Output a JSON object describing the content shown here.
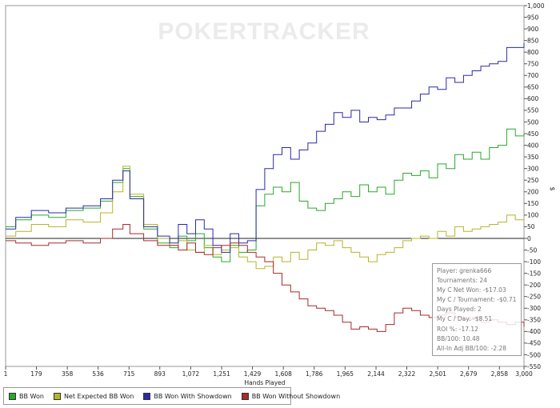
{
  "chart_data": {
    "type": "line",
    "watermark": "POKERTRACKER",
    "xlabel": "Hands Played",
    "ylabel": "$",
    "xlim": [
      1,
      3000
    ],
    "ylim": [
      -550,
      1000
    ],
    "x_ticks": [
      1,
      179,
      358,
      536,
      715,
      893,
      1072,
      1251,
      1429,
      1608,
      1786,
      1965,
      2144,
      2322,
      2501,
      2679,
      2858,
      3000
    ],
    "x_tick_labels": [
      "1",
      "179",
      "358",
      "536",
      "715",
      "893",
      "1,072",
      "1,251",
      "1,429",
      "1,608",
      "1,786",
      "1,965",
      "2,144",
      "2,322",
      "2,501",
      "2,679",
      "2,858",
      "3,000"
    ],
    "y_ticks": [
      -550,
      -500,
      -450,
      -400,
      -350,
      -300,
      -250,
      -200,
      -150,
      -100,
      -50,
      0,
      50,
      100,
      150,
      200,
      250,
      300,
      350,
      400,
      450,
      500,
      550,
      600,
      650,
      700,
      750,
      800,
      850,
      900,
      950,
      1000
    ],
    "y_tick_labels": [
      "-550",
      "-500",
      "-450",
      "-400",
      "-350",
      "-300",
      "-250",
      "-200",
      "-150",
      "-100",
      "-50",
      "0",
      "50",
      "100",
      "150",
      "200",
      "250",
      "300",
      "350",
      "400",
      "450",
      "500",
      "550",
      "600",
      "650",
      "700",
      "750",
      "800",
      "850",
      "900",
      "950",
      "1,000"
    ],
    "series": [
      {
        "name": "BB Won",
        "color": "#2aa72a",
        "x": [
          1,
          60,
          150,
          250,
          350,
          450,
          550,
          620,
          680,
          720,
          800,
          880,
          950,
          1000,
          1050,
          1100,
          1150,
          1200,
          1250,
          1300,
          1350,
          1400,
          1450,
          1500,
          1550,
          1600,
          1650,
          1700,
          1750,
          1800,
          1850,
          1900,
          1950,
          2000,
          2050,
          2100,
          2150,
          2200,
          2250,
          2300,
          2350,
          2400,
          2450,
          2500,
          2550,
          2600,
          2650,
          2700,
          2750,
          2800,
          2850,
          2900,
          2950,
          3000
        ],
        "y": [
          50,
          80,
          100,
          90,
          120,
          130,
          160,
          240,
          300,
          180,
          40,
          -20,
          -40,
          10,
          -10,
          20,
          -40,
          -80,
          -100,
          -30,
          -60,
          -50,
          140,
          190,
          220,
          200,
          240,
          160,
          130,
          120,
          150,
          170,
          200,
          180,
          230,
          200,
          220,
          190,
          250,
          280,
          270,
          290,
          260,
          320,
          300,
          360,
          340,
          370,
          340,
          390,
          400,
          470,
          440,
          450
        ]
      },
      {
        "name": "Net Expected BB Won",
        "color": "#b5b52a",
        "x": [
          1,
          60,
          150,
          250,
          350,
          450,
          550,
          620,
          680,
          720,
          800,
          880,
          950,
          1000,
          1050,
          1100,
          1150,
          1200,
          1250,
          1300,
          1350,
          1400,
          1450,
          1500,
          1550,
          1600,
          1650,
          1700,
          1750,
          1800,
          1850,
          1900,
          1950,
          2000,
          2050,
          2100,
          2150,
          2200,
          2250,
          2300,
          2350,
          2400,
          2450,
          2500,
          2550,
          2600,
          2650,
          2700,
          2750,
          2800,
          2850,
          2900,
          2950,
          3000
        ],
        "y": [
          10,
          30,
          60,
          50,
          80,
          70,
          110,
          200,
          310,
          190,
          60,
          0,
          -30,
          -10,
          -50,
          -60,
          -30,
          -70,
          -50,
          -40,
          -80,
          -100,
          -130,
          -120,
          -80,
          -100,
          -60,
          -90,
          -50,
          -20,
          -30,
          -10,
          -40,
          -60,
          -80,
          -100,
          -70,
          -60,
          -40,
          -10,
          0,
          10,
          0,
          30,
          10,
          50,
          30,
          40,
          50,
          60,
          70,
          100,
          80,
          70
        ]
      },
      {
        "name": "BB Won With Showdown",
        "color": "#2a2aa7",
        "x": [
          1,
          60,
          150,
          250,
          350,
          450,
          550,
          620,
          680,
          720,
          800,
          880,
          950,
          1000,
          1050,
          1100,
          1150,
          1200,
          1250,
          1300,
          1350,
          1400,
          1450,
          1500,
          1550,
          1600,
          1650,
          1700,
          1750,
          1800,
          1850,
          1900,
          1950,
          2000,
          2050,
          2100,
          2150,
          2200,
          2250,
          2300,
          2350,
          2400,
          2450,
          2500,
          2550,
          2600,
          2650,
          2700,
          2750,
          2800,
          2850,
          2900,
          2950,
          3000
        ],
        "y": [
          40,
          90,
          120,
          110,
          130,
          140,
          170,
          250,
          290,
          170,
          50,
          10,
          -20,
          60,
          20,
          80,
          40,
          -30,
          -60,
          20,
          -20,
          -10,
          210,
          300,
          360,
          390,
          340,
          380,
          410,
          460,
          490,
          540,
          520,
          550,
          500,
          520,
          510,
          530,
          560,
          560,
          590,
          620,
          650,
          640,
          690,
          670,
          700,
          720,
          740,
          750,
          760,
          820,
          820,
          840
        ]
      },
      {
        "name": "BB Won Without Showdown",
        "color": "#a72a2a",
        "x": [
          1,
          60,
          150,
          250,
          350,
          450,
          550,
          620,
          680,
          720,
          800,
          880,
          950,
          1000,
          1050,
          1100,
          1150,
          1200,
          1250,
          1300,
          1350,
          1400,
          1450,
          1500,
          1550,
          1600,
          1650,
          1700,
          1750,
          1800,
          1850,
          1900,
          1950,
          2000,
          2050,
          2100,
          2150,
          2200,
          2250,
          2300,
          2350,
          2400,
          2450,
          2500,
          2550,
          2600,
          2650,
          2700,
          2750,
          2800,
          2850,
          2900,
          2950,
          3000
        ],
        "y": [
          -10,
          -20,
          -30,
          -20,
          -10,
          -20,
          0,
          40,
          60,
          20,
          -10,
          -30,
          -30,
          -50,
          -20,
          -60,
          -70,
          -40,
          -30,
          -20,
          -30,
          -60,
          -80,
          -100,
          -150,
          -200,
          -230,
          -260,
          -290,
          -300,
          -310,
          -330,
          -360,
          -390,
          -380,
          -390,
          -400,
          -370,
          -320,
          -300,
          -310,
          -330,
          -340,
          -330,
          -320,
          -340,
          -350,
          -340,
          -360,
          -350,
          -360,
          -370,
          -360,
          -380
        ]
      }
    ]
  },
  "legend": {
    "items": [
      {
        "label": "BB Won",
        "color": "#2aa72a"
      },
      {
        "label": "Net Expected BB Won",
        "color": "#b5b52a"
      },
      {
        "label": "BB Won With Showdown",
        "color": "#2a2aa7"
      },
      {
        "label": "BB Won Without Showdown",
        "color": "#a72a2a"
      }
    ]
  },
  "stats": {
    "player": "Player: grenka666",
    "tournaments": "Tournaments: 24",
    "net_won": "My C Net Won: -$17.03",
    "per_tournament": "My C / Tournament: -$0.71",
    "days_played": "Days Played: 2",
    "per_day": "My C / Day: -$8.51",
    "roi": "ROI %: -17.12",
    "bb100": "BB/100: 10.48",
    "allin_bb100": "All-In Adj BB/100: -2.28"
  }
}
